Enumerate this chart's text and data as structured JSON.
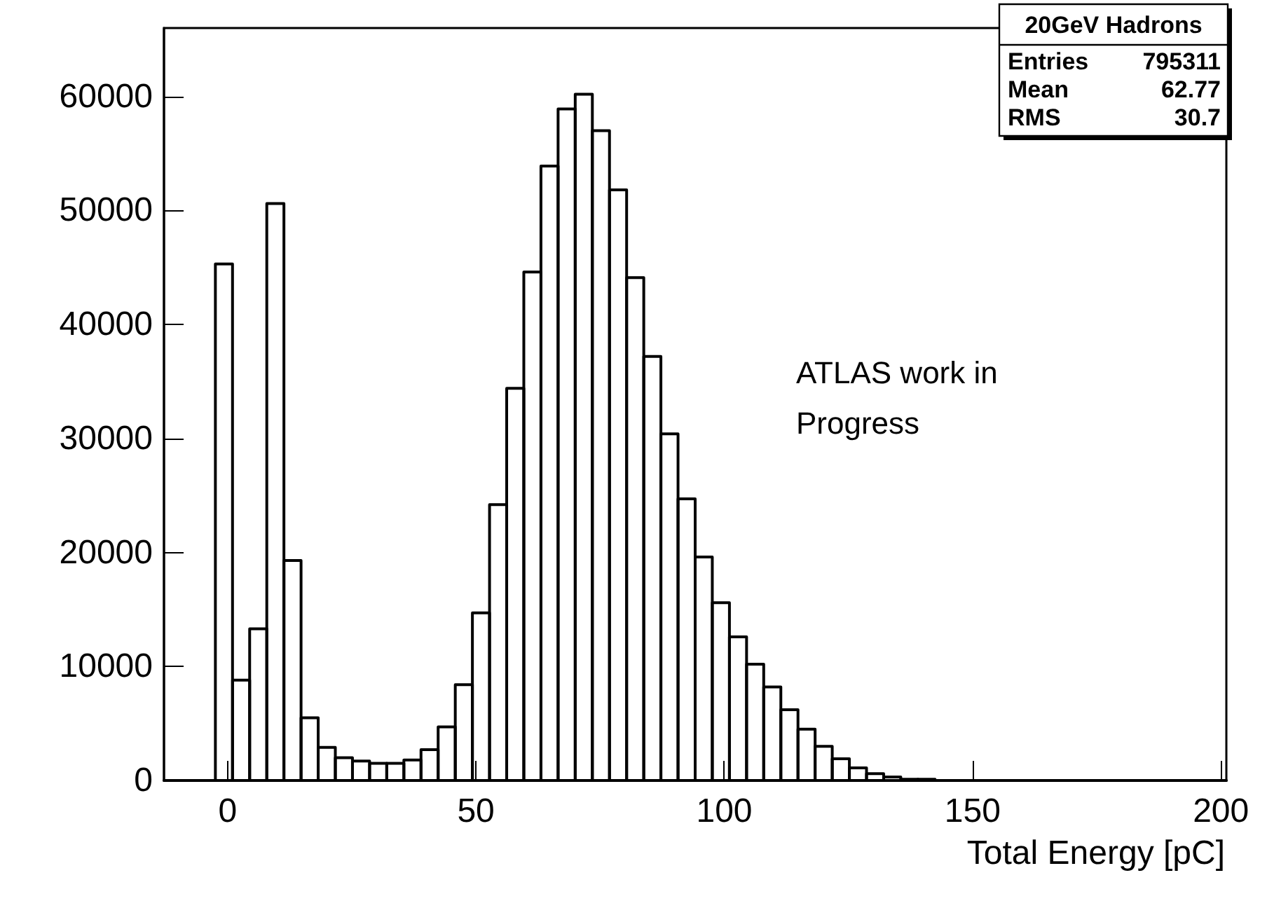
{
  "chart_data": {
    "type": "histogram",
    "xlabel": "Total Energy [pC]",
    "bins": [
      -12.8,
      -9.35,
      -5.9,
      -2.45,
      1.0,
      4.45,
      7.9,
      11.35,
      14.8,
      18.25,
      21.7,
      25.15,
      28.6,
      32.05,
      35.5,
      38.95,
      42.4,
      45.85,
      49.3,
      52.75,
      56.2,
      59.65,
      63.1,
      66.55,
      70.0,
      73.45,
      76.9,
      80.35,
      83.8,
      87.25,
      90.7,
      94.15,
      97.6,
      101.05,
      104.5,
      107.95,
      111.4,
      114.85,
      118.3,
      121.75,
      125.2,
      128.65,
      132.1,
      135.55,
      139.0,
      142.45,
      145.9,
      149.35,
      152.8,
      156.25,
      159.7,
      163.15,
      166.6,
      170.05,
      173.5,
      176.95,
      180.4,
      183.85,
      187.3,
      190.75,
      194.2,
      197.65,
      201.1
    ],
    "values": [
      0,
      0,
      0,
      45300,
      8800,
      13300,
      50600,
      19300,
      5500,
      2900,
      2000,
      1700,
      1500,
      1500,
      1800,
      2700,
      4700,
      8400,
      14700,
      24200,
      34400,
      44600,
      53900,
      58900,
      60200,
      57000,
      51800,
      44100,
      37200,
      30400,
      24700,
      19600,
      15600,
      12600,
      10200,
      8200,
      6200,
      4500,
      3000,
      1900,
      1100,
      600,
      300,
      100,
      100,
      0,
      0,
      0,
      0,
      0,
      0,
      0,
      0,
      0,
      0,
      0,
      0,
      0,
      0,
      0,
      0,
      0
    ],
    "color": "#000000",
    "xlim": [
      -12.8,
      201.1
    ],
    "xticks": [
      0,
      50,
      100,
      150,
      200
    ],
    "ylim": [
      0,
      66000
    ],
    "yticks": [
      0,
      10000,
      20000,
      30000,
      40000,
      50000,
      60000
    ],
    "grid": false,
    "annotations": [
      "20GeV Hadrons",
      "Entries",
      "795311",
      "Mean",
      "62.77",
      "RMS",
      "30.7",
      "ATLAS work in Progress"
    ]
  }
}
